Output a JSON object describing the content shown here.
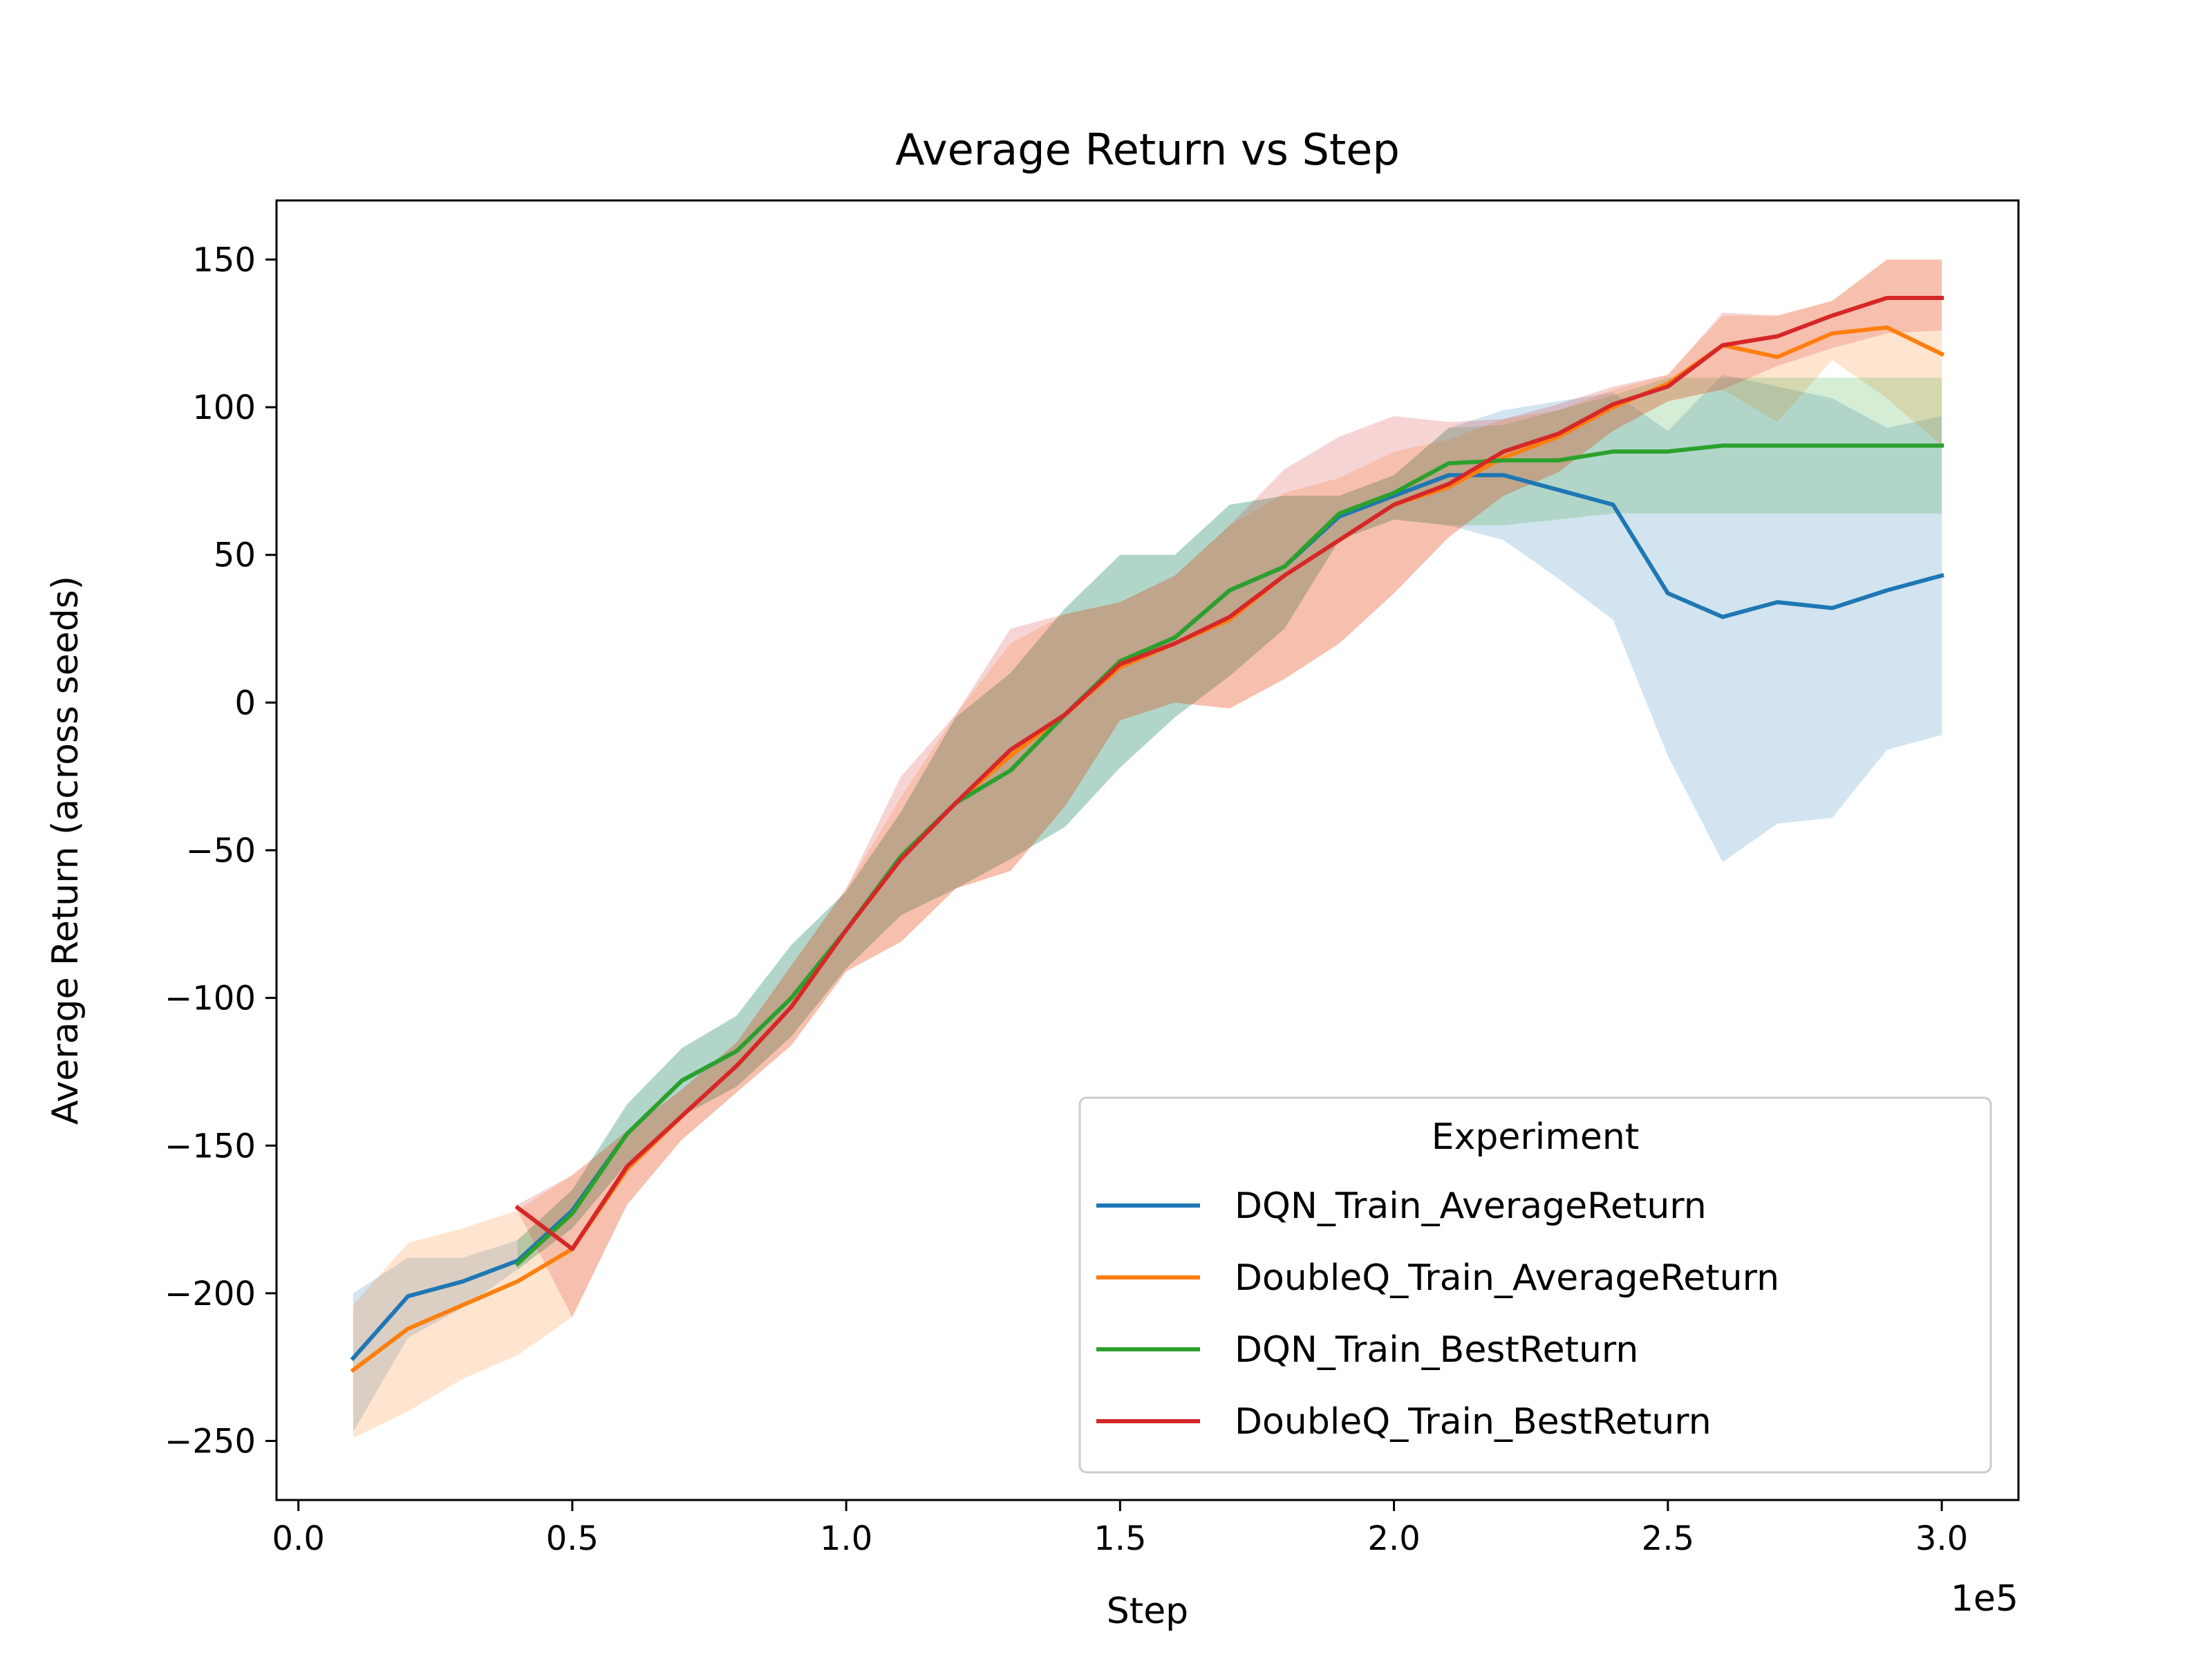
{
  "chart_data": {
    "type": "line",
    "title": "Average Return vs Step",
    "xlabel": "Step",
    "ylabel": "Average Return (across seeds)",
    "x_offset_label": "1e5",
    "xlim": [
      -0.04,
      3.14
    ],
    "ylim": [
      -270,
      170
    ],
    "xticks": [
      0.0,
      0.5,
      1.0,
      1.5,
      2.0,
      2.5,
      3.0
    ],
    "xtick_labels": [
      "0.0",
      "0.5",
      "1.0",
      "1.5",
      "2.0",
      "2.5",
      "3.0"
    ],
    "yticks": [
      150,
      100,
      50,
      0,
      -50,
      -100,
      -150,
      -200,
      -250
    ],
    "ytick_labels": [
      "150",
      "100",
      "50",
      "0",
      "−50",
      "−100",
      "−150",
      "−200",
      "−250"
    ],
    "grid": false,
    "legend": {
      "title": "Experiment",
      "placement": "lower-right"
    },
    "series": [
      {
        "name": "DQN_Train_AverageReturn",
        "color": "#1f77b4",
        "x": [
          0.1,
          0.2,
          0.3,
          0.4,
          0.5,
          0.6,
          0.7,
          0.8,
          0.9,
          1.0,
          1.1,
          1.2,
          1.3,
          1.4,
          1.5,
          1.6,
          1.7,
          1.8,
          1.9,
          2.0,
          2.1,
          2.2,
          2.3,
          2.4,
          2.5,
          2.6,
          2.7,
          2.8,
          2.9,
          3.0
        ],
        "y": [
          -222,
          -201,
          -196,
          -189,
          -172,
          -146,
          -128,
          -118,
          -100,
          -77,
          -52,
          -34,
          -23,
          -4,
          14,
          22,
          38,
          46,
          63,
          70,
          77,
          77,
          72,
          67,
          37,
          29,
          34,
          32,
          38,
          43
        ],
        "lower": [
          -247,
          -215,
          -205,
          -192,
          -178,
          -156,
          -140,
          -130,
          -113,
          -90,
          -72,
          -63,
          -53,
          -42,
          -22,
          -5,
          9,
          25,
          55,
          62,
          60,
          55,
          42,
          28,
          -18,
          -54,
          -41,
          -39,
          -16,
          -11
        ],
        "upper": [
          -200,
          -188,
          -188,
          -182,
          -165,
          -136,
          -117,
          -106,
          -82,
          -64,
          -37,
          -5,
          10,
          32,
          50,
          50,
          67,
          70,
          70,
          77,
          93,
          99,
          102,
          105,
          92,
          111,
          107,
          103,
          93,
          97
        ]
      },
      {
        "name": "DoubleQ_Train_AverageReturn",
        "color": "#ff7f0e",
        "x": [
          0.1,
          0.2,
          0.3,
          0.4,
          0.5,
          0.6,
          0.7,
          0.8,
          0.9,
          1.0,
          1.1,
          1.2,
          1.3,
          1.4,
          1.5,
          1.6,
          1.7,
          1.8,
          1.9,
          2.0,
          2.1,
          2.2,
          2.3,
          2.4,
          2.5,
          2.6,
          2.7,
          2.8,
          2.9,
          3.0
        ],
        "y": [
          -226,
          -212,
          -204,
          -196,
          -185,
          -158,
          -140,
          -123,
          -103,
          -77,
          -53,
          -34,
          -18,
          -4,
          12,
          20,
          28,
          43,
          55,
          67,
          73,
          83,
          90,
          100,
          108,
          121,
          117,
          125,
          127,
          118
        ],
        "lower": [
          -249,
          -240,
          -229,
          -221,
          -208,
          -170,
          -148,
          -132,
          -116,
          -91,
          -81,
          -63,
          -57,
          -35,
          -6,
          0,
          -2,
          8,
          20,
          37,
          56,
          70,
          78,
          92,
          102,
          106,
          95,
          116,
          103,
          87
        ],
        "upper": [
          -204,
          -183,
          -178,
          -172,
          -160,
          -145,
          -131,
          -115,
          -89,
          -63,
          -32,
          -4,
          20,
          30,
          34,
          43,
          60,
          71,
          76,
          85,
          89,
          96,
          99,
          106,
          111,
          131,
          131,
          136,
          150,
          150
        ]
      },
      {
        "name": "DQN_Train_BestReturn",
        "color": "#2ca02c",
        "x": [
          0.4,
          0.5,
          0.6,
          0.7,
          0.8,
          0.9,
          1.0,
          1.1,
          1.2,
          1.3,
          1.4,
          1.5,
          1.6,
          1.7,
          1.8,
          1.9,
          2.0,
          2.1,
          2.2,
          2.3,
          2.4,
          2.5,
          2.6,
          2.7,
          2.8,
          2.9,
          3.0
        ],
        "y": [
          -190,
          -173,
          -146,
          -128,
          -118,
          -100,
          -77,
          -52,
          -34,
          -23,
          -4,
          14,
          22,
          38,
          46,
          64,
          71,
          81,
          82,
          82,
          85,
          85,
          87,
          87,
          87,
          87,
          87
        ],
        "lower": [
          -192,
          -178,
          -156,
          -140,
          -130,
          -113,
          -90,
          -72,
          -63,
          -53,
          -42,
          -22,
          -5,
          9,
          25,
          55,
          62,
          60,
          60,
          62,
          64,
          64,
          64,
          64,
          64,
          64,
          64
        ],
        "upper": [
          -182,
          -165,
          -136,
          -117,
          -106,
          -82,
          -64,
          -37,
          -5,
          10,
          32,
          50,
          50,
          67,
          70,
          70,
          77,
          93,
          94,
          99,
          104,
          110,
          110,
          110,
          110,
          110,
          110
        ]
      },
      {
        "name": "DoubleQ_Train_BestReturn",
        "color": "#d62728",
        "x": [
          0.4,
          0.5,
          0.6,
          0.7,
          0.8,
          0.9,
          1.0,
          1.1,
          1.2,
          1.3,
          1.4,
          1.5,
          1.6,
          1.7,
          1.8,
          1.9,
          2.0,
          2.1,
          2.2,
          2.3,
          2.4,
          2.5,
          2.6,
          2.7,
          2.8,
          2.9,
          3.0
        ],
        "y": [
          -171,
          -185,
          -157,
          -140,
          -123,
          -103,
          -77,
          -53,
          -34,
          -16,
          -4,
          13,
          20,
          29,
          43,
          55,
          67,
          74,
          85,
          91,
          101,
          107,
          121,
          124,
          131,
          137,
          137
        ],
        "lower": [
          -172,
          -208,
          -170,
          -148,
          -132,
          -116,
          -91,
          -81,
          -63,
          -57,
          -35,
          -6,
          0,
          -2,
          8,
          20,
          37,
          56,
          70,
          78,
          92,
          102,
          106,
          114,
          120,
          125,
          126
        ],
        "upper": [
          -170,
          -160,
          -145,
          -131,
          -115,
          -89,
          -63,
          -25,
          -4,
          25,
          30,
          34,
          43,
          60,
          79,
          90,
          97,
          95,
          96,
          101,
          107,
          111,
          132,
          131,
          136,
          150,
          150
        ]
      }
    ]
  }
}
